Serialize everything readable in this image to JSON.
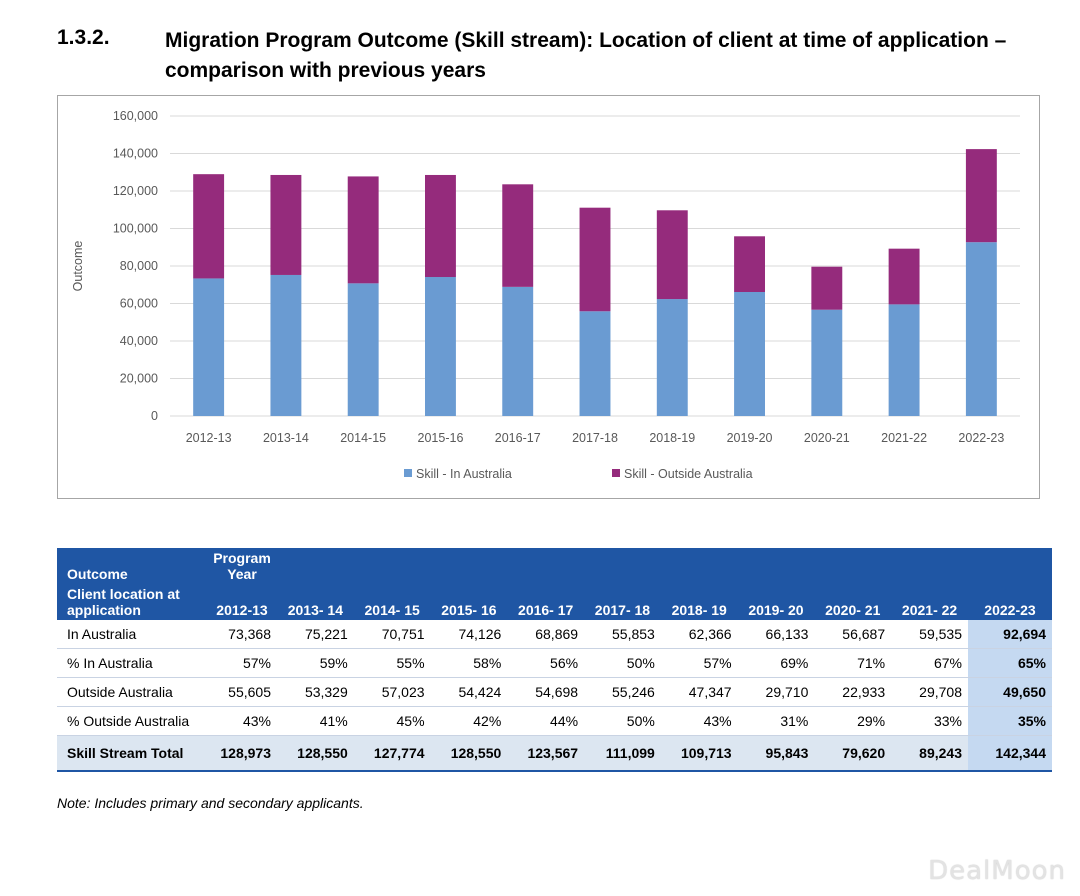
{
  "heading": {
    "number": "1.3.2.",
    "title": "Migration Program Outcome (Skill stream): Location of client at time of application – comparison with previous years"
  },
  "chart_data": {
    "type": "bar",
    "stacked": true,
    "title": "",
    "xlabel": "",
    "ylabel": "Outcome",
    "ylim": [
      0,
      160000
    ],
    "yticks": [
      0,
      20000,
      40000,
      60000,
      80000,
      100000,
      120000,
      140000,
      160000
    ],
    "ytick_labels": [
      "0",
      "20,000",
      "40,000",
      "60,000",
      "80,000",
      "100,000",
      "120,000",
      "140,000",
      "160,000"
    ],
    "grid": true,
    "legend_position": "bottom",
    "categories": [
      "2012-13",
      "2013-14",
      "2014-15",
      "2015-16",
      "2016-17",
      "2017-18",
      "2018-19",
      "2019-20",
      "2020-21",
      "2021-22",
      "2022-23"
    ],
    "series": [
      {
        "name": "Skill - In Australia",
        "color": "#6a9bd2",
        "values": [
          73368,
          75221,
          70751,
          74126,
          68869,
          55853,
          62366,
          66133,
          56687,
          59535,
          92694
        ]
      },
      {
        "name": "Skill - Outside Australia",
        "color": "#952b7c",
        "values": [
          55605,
          53329,
          57023,
          54424,
          54698,
          55246,
          47347,
          29710,
          22933,
          29708,
          49650
        ]
      }
    ]
  },
  "table": {
    "header1": {
      "label": "Outcome",
      "year_label": "Program Year"
    },
    "header2": {
      "label": "Client location at application",
      "years": [
        "2012-13",
        "2013- 14",
        "2014- 15",
        "2015- 16",
        "2016- 17",
        "2017- 18",
        "2018- 19",
        "2019- 20",
        "2020- 21",
        "2021- 22",
        "2022-23"
      ]
    },
    "rows": [
      {
        "label": "In Australia",
        "values": [
          "73,368",
          "75,221",
          "70,751",
          "74,126",
          "68,869",
          "55,853",
          "62,366",
          "66,133",
          "56,687",
          "59,535",
          "92,694"
        ]
      },
      {
        "label": "% In Australia",
        "values": [
          "57%",
          "59%",
          "55%",
          "58%",
          "56%",
          "50%",
          "57%",
          "69%",
          "71%",
          "67%",
          "65%"
        ]
      },
      {
        "label": "Outside Australia",
        "values": [
          "55,605",
          "53,329",
          "57,023",
          "54,424",
          "54,698",
          "55,246",
          "47,347",
          "29,710",
          "22,933",
          "29,708",
          "49,650"
        ]
      },
      {
        "label": "% Outside Australia",
        "values": [
          "43%",
          "41%",
          "45%",
          "42%",
          "44%",
          "50%",
          "43%",
          "31%",
          "29%",
          "33%",
          "35%"
        ]
      }
    ],
    "total": {
      "label": "Skill Stream Total",
      "values": [
        "128,973",
        "128,550",
        "127,774",
        "128,550",
        "123,567",
        "111,099",
        "109,713",
        "95,843",
        "79,620",
        "89,243",
        "142,344"
      ]
    }
  },
  "note": "Note: Includes primary and secondary applicants.",
  "watermark": "DealMoon"
}
